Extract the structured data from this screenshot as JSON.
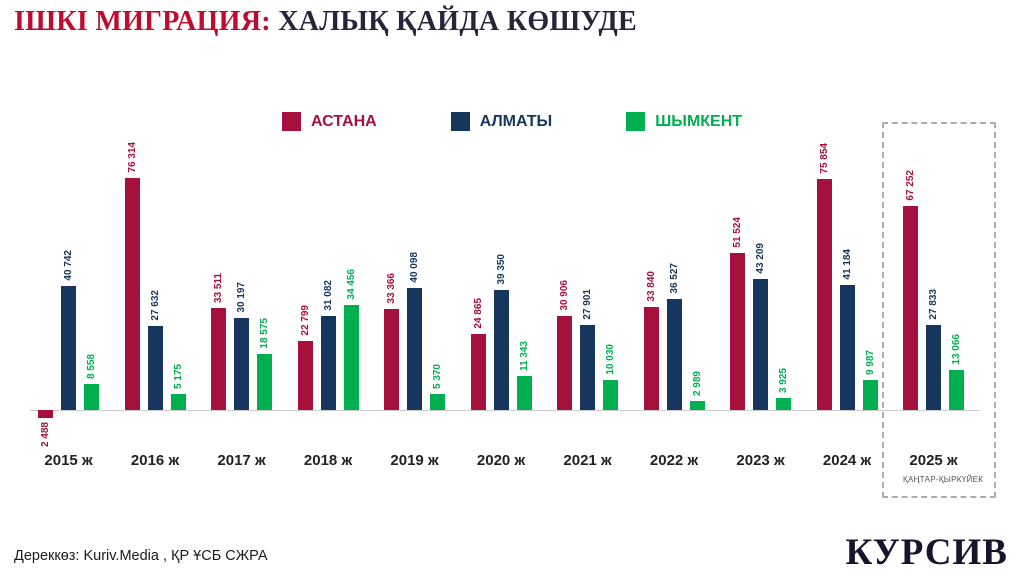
{
  "header": {
    "title_accent": "ІШКІ МИГРАЦИЯ:",
    "title_rest": " ХАЛЫҚ ҚАЙДА КӨШУДЕ"
  },
  "legend": [
    {
      "label": "АСТАНА",
      "color": "#A6103C"
    },
    {
      "label": "АЛМАТЫ",
      "color": "#17365D"
    },
    {
      "label": "ШЫМКЕНТ",
      "color": "#00AF50"
    }
  ],
  "chart_data": {
    "type": "bar",
    "title": "ІШКІ МИГРАЦИЯ: ХАЛЫҚ ҚАЙДА КӨШУДЕ",
    "categories": [
      "2015 ж",
      "2016 ж",
      "2017 ж",
      "2018 ж",
      "2019 ж",
      "2020 ж",
      "2021 ж",
      "2022 ж",
      "2023 ж",
      "2024 ж",
      "2025 ж"
    ],
    "series": [
      {
        "name": "АСТАНА",
        "key": "astana",
        "color": "#A6103C",
        "values": [
          -2488,
          76314,
          33511,
          22799,
          33366,
          24865,
          30906,
          33840,
          51524,
          75854,
          67252
        ]
      },
      {
        "name": "АЛМАТЫ",
        "key": "almaty",
        "color": "#17365D",
        "values": [
          40742,
          27632,
          30197,
          31082,
          40098,
          39350,
          27901,
          36527,
          43209,
          41184,
          27833
        ]
      },
      {
        "name": "ШЫМКЕНТ",
        "key": "shymkent",
        "color": "#00AF50",
        "values": [
          8558,
          5175,
          18575,
          34456,
          5370,
          11343,
          10030,
          2989,
          3925,
          9987,
          13066
        ]
      }
    ],
    "highlighted_category": "2025 ж",
    "highlight_note": "ҚАҢТАР-ҚЫРКҮЙЕК",
    "value_label_rotation": "vertical",
    "value_label_format": "space-thousands",
    "baseline": 0,
    "ylim": [
      -5000,
      80000
    ],
    "grid": false,
    "legend_position": "top-center"
  },
  "colors": {
    "title_accent": "#C00A2E",
    "title_text": "#26263B",
    "axis_line": "#CCCCCC",
    "highlight_border": "#A9ADB3",
    "logo_color": "#17152E"
  },
  "footer": {
    "source": "Дереккөз: Kuriv.Media , ҚР ҰСБ СЖРА",
    "logo": "КУРСИВ"
  }
}
